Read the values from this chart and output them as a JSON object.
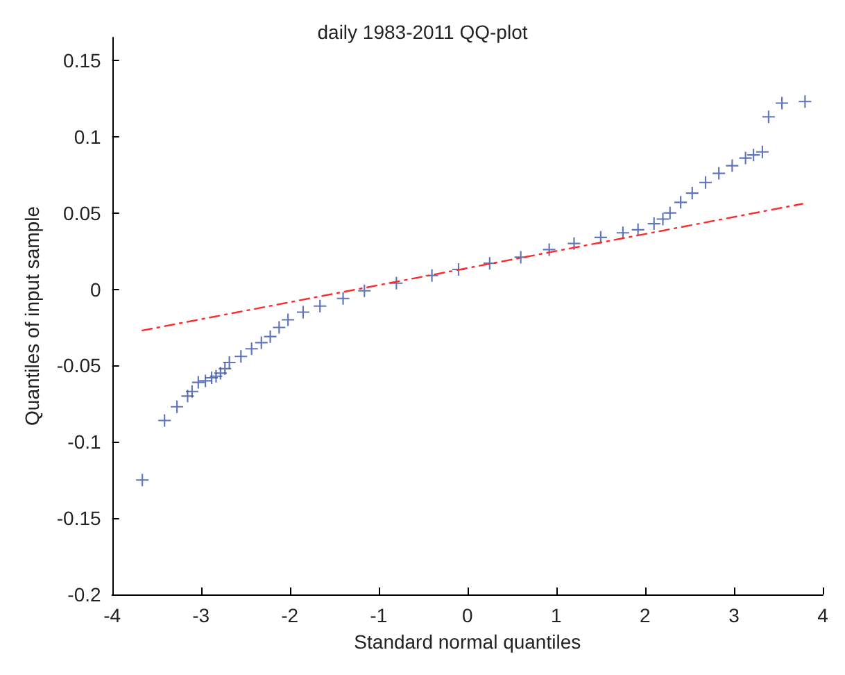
{
  "chart_data": {
    "type": "scatter",
    "title": "daily 1983-2011 QQ-plot",
    "xlabel": "Standard normal quantiles",
    "ylabel": "Quantiles of input sample",
    "xlim": [
      -4,
      4
    ],
    "xticks": [
      -4,
      -3,
      -2,
      -1,
      0,
      1,
      2,
      3,
      4
    ],
    "ylim": [
      -0.2,
      0.165
    ],
    "yticks": [
      -0.2,
      -0.15,
      -0.1,
      -0.05,
      0,
      0.05,
      0.1,
      0.15
    ],
    "grid": false,
    "marker": "cross",
    "series": [
      {
        "color": "#3a52a8",
        "x": [
          -3.66,
          -3.41,
          -3.27,
          -3.15,
          -3.1,
          -3.03,
          -2.95,
          -2.88,
          -2.83,
          -2.78,
          -2.73,
          -2.68,
          -2.55,
          -2.43,
          -2.32,
          -2.22,
          -2.12,
          -2.02,
          -1.85,
          -1.66,
          -1.4,
          -1.16,
          -0.8,
          -0.4,
          -0.1,
          0.25,
          0.6,
          0.92,
          1.2,
          1.5,
          1.75,
          1.92,
          2.1,
          2.2,
          2.28,
          2.4,
          2.53,
          2.68,
          2.83,
          2.98,
          3.13,
          3.22,
          3.32,
          3.39,
          3.54,
          3.8
        ],
        "values": [
          -0.125,
          -0.086,
          -0.077,
          -0.07,
          -0.067,
          -0.061,
          -0.06,
          -0.058,
          -0.057,
          -0.055,
          -0.052,
          -0.048,
          -0.044,
          -0.039,
          -0.035,
          -0.031,
          -0.025,
          -0.02,
          -0.015,
          -0.011,
          -0.006,
          -0.001,
          0.004,
          0.009,
          0.013,
          0.017,
          0.021,
          0.026,
          0.03,
          0.034,
          0.037,
          0.039,
          0.043,
          0.046,
          0.05,
          0.057,
          0.063,
          0.07,
          0.076,
          0.081,
          0.086,
          0.088,
          0.09,
          0.113,
          0.122,
          0.123
        ]
      },
      {
        "type": "line",
        "color": "#ff2a2a",
        "line_style": "dashed",
        "marker": "none",
        "x": [
          -3.66,
          3.77
        ],
        "values": [
          -0.027,
          0.056
        ]
      }
    ]
  }
}
